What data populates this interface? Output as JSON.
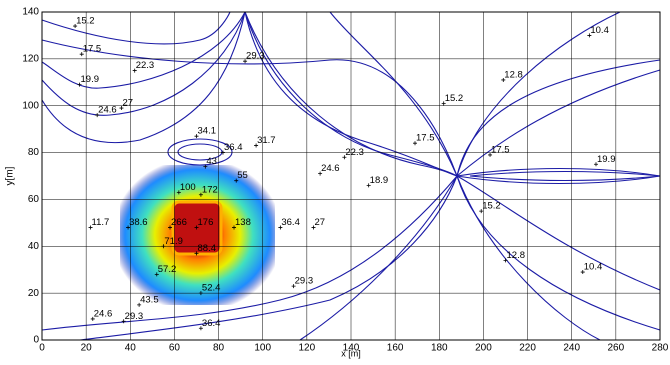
{
  "chart_data": {
    "type": "contour",
    "xlabel": "x [m]",
    "ylabel": "y[m]",
    "xlim": [
      0,
      280
    ],
    "ylim": [
      0,
      140
    ],
    "xticks": [
      0,
      20,
      40,
      60,
      80,
      100,
      120,
      140,
      160,
      180,
      200,
      220,
      240,
      260,
      280
    ],
    "yticks": [
      0,
      20,
      40,
      60,
      80,
      100,
      120,
      140
    ],
    "grid": true,
    "color": "#1c1ca6",
    "labels": [
      {
        "x": 15,
        "y": 134,
        "value": 15.2
      },
      {
        "x": 18,
        "y": 122,
        "value": 17.5
      },
      {
        "x": 17,
        "y": 109,
        "value": 19.9
      },
      {
        "x": 42,
        "y": 115,
        "value": 22.3
      },
      {
        "x": 92,
        "y": 119,
        "value": 29.3
      },
      {
        "x": 25,
        "y": 96,
        "value": 24.6
      },
      {
        "x": 36,
        "y": 99,
        "value": 27
      },
      {
        "x": 70,
        "y": 87,
        "value": 34.1
      },
      {
        "x": 82,
        "y": 80,
        "value": 36.4
      },
      {
        "x": 97,
        "y": 83,
        "value": 31.7
      },
      {
        "x": 74,
        "y": 74,
        "value": 43
      },
      {
        "x": 126,
        "y": 71,
        "value": 24.6
      },
      {
        "x": 137,
        "y": 78,
        "value": 22.3
      },
      {
        "x": 169,
        "y": 84,
        "value": 17.5
      },
      {
        "x": 182,
        "y": 101,
        "value": 15.2
      },
      {
        "x": 209,
        "y": 111,
        "value": 12.8
      },
      {
        "x": 248,
        "y": 130,
        "value": 10.4
      },
      {
        "x": 203,
        "y": 79,
        "value": 17.5
      },
      {
        "x": 251,
        "y": 75,
        "value": 19.9
      },
      {
        "x": 148,
        "y": 66,
        "value": 18.9
      },
      {
        "x": 199,
        "y": 55,
        "value": 15.2
      },
      {
        "x": 210,
        "y": 34,
        "value": 12.8
      },
      {
        "x": 245,
        "y": 29,
        "value": 10.4
      },
      {
        "x": 62,
        "y": 63,
        "value": 100
      },
      {
        "x": 72,
        "y": 62,
        "value": 172
      },
      {
        "x": 88,
        "y": 68,
        "value": 55
      },
      {
        "x": 58,
        "y": 48,
        "value": 266
      },
      {
        "x": 70,
        "y": 48,
        "value": 176
      },
      {
        "x": 87,
        "y": 48,
        "value": 138
      },
      {
        "x": 39,
        "y": 48,
        "value": 38.6
      },
      {
        "x": 22,
        "y": 48,
        "value": 11.7
      },
      {
        "x": 55,
        "y": 40,
        "value": 71.9
      },
      {
        "x": 70,
        "y": 37,
        "value": 88.4
      },
      {
        "x": 108,
        "y": 48,
        "value": 36.4
      },
      {
        "x": 123,
        "y": 48,
        "value": 27
      },
      {
        "x": 52,
        "y": 28,
        "value": 57.2
      },
      {
        "x": 72,
        "y": 20,
        "value": 52.4
      },
      {
        "x": 114,
        "y": 23,
        "value": 29.3
      },
      {
        "x": 23,
        "y": 9,
        "value": 24.6
      },
      {
        "x": 37,
        "y": 8,
        "value": 29.3
      },
      {
        "x": 44,
        "y": 15,
        "value": 43.5
      },
      {
        "x": 72,
        "y": 5,
        "value": 36.4
      }
    ]
  }
}
